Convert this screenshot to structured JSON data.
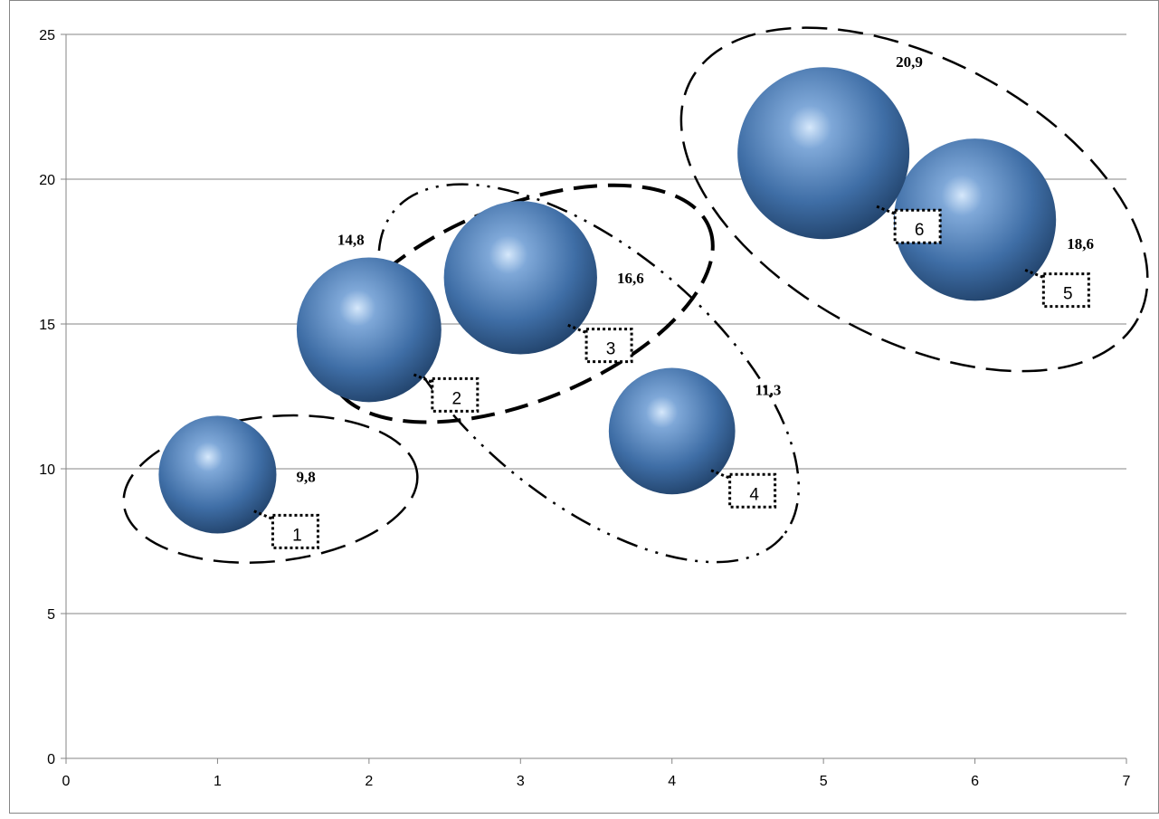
{
  "chart_data": {
    "type": "scatter",
    "subtype": "bubble",
    "title": "",
    "xlabel": "",
    "ylabel": "",
    "xlim": [
      0,
      7
    ],
    "ylim": [
      0,
      25
    ],
    "x_ticks": [
      "0",
      "1",
      "2",
      "3",
      "4",
      "5",
      "6",
      "7"
    ],
    "y_ticks": [
      "0",
      "5",
      "10",
      "15",
      "20",
      "25"
    ],
    "grid": "horizontal",
    "legend": "none",
    "colors": {
      "bubble": "#4a78b0",
      "bubble_highlight": "#cfe3fa",
      "bubble_shadow": "#1f3f66",
      "grid": "#868686"
    },
    "points": [
      {
        "x": 1,
        "y": 9.8,
        "size": 9.8,
        "value_label": "9,8",
        "number_label": "1"
      },
      {
        "x": 2,
        "y": 14.8,
        "size": 14.8,
        "value_label": "14,8",
        "number_label": "2"
      },
      {
        "x": 3,
        "y": 16.6,
        "size": 16.6,
        "value_label": "16,6",
        "number_label": "3"
      },
      {
        "x": 4,
        "y": 11.3,
        "size": 11.3,
        "value_label": "11,3",
        "number_label": "4"
      },
      {
        "x": 6,
        "y": 18.6,
        "size": 18.6,
        "value_label": "18,6",
        "number_label": "5"
      },
      {
        "x": 5,
        "y": 20.9,
        "size": 20.9,
        "value_label": "20,9",
        "number_label": "6"
      }
    ],
    "annotations": [
      {
        "type": "ellipse",
        "style": "dashed",
        "groups": [
          "1"
        ]
      },
      {
        "type": "ellipse",
        "style": "dashed-bold",
        "groups": [
          "2",
          "3"
        ]
      },
      {
        "type": "ellipse",
        "style": "dash-dot-dot",
        "groups": [
          "2",
          "3",
          "4"
        ]
      },
      {
        "type": "ellipse",
        "style": "dashed",
        "groups": [
          "5",
          "6"
        ]
      }
    ]
  }
}
